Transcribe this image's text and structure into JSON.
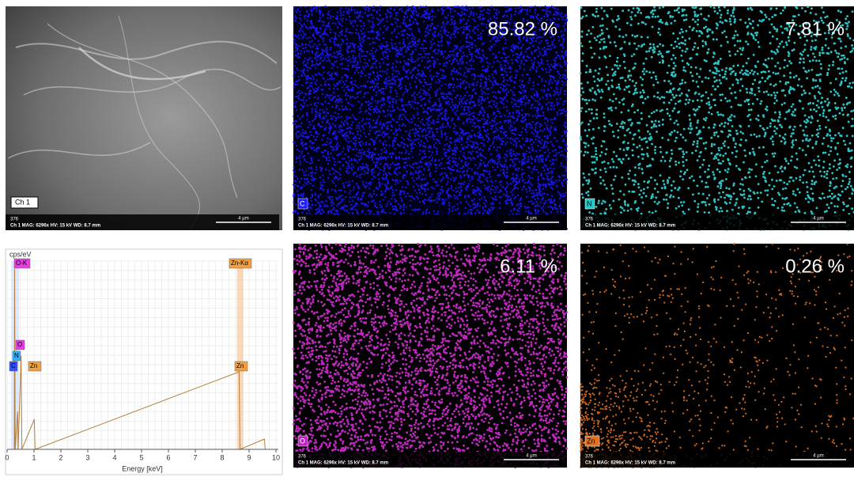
{
  "panels": [
    {
      "tag": "Ch 1",
      "id": "376",
      "info": "Ch 1   MAG: 6296x   HV: 15 kV   WD: 8.7 mm",
      "scale": "4 µm"
    },
    {
      "tag": "C",
      "percent": "85.82 %",
      "id": "376",
      "info": "Ch 1   MAG: 6296x   HV: 15 kV   WD: 8.7 mm",
      "scale": "4 µm"
    },
    {
      "tag": "N",
      "percent": "7.81 %",
      "id": "376",
      "info": "Ch 1   MAG: 6296x   HV: 15 kV   WD: 8.7 mm",
      "scale": "4 µm"
    },
    {
      "tag": "O",
      "percent": "6.11 %",
      "id": "376",
      "info": "Ch 1   MAG: 6296x   HV: 15 kV   WD: 8.7 mm",
      "scale": "4 µm"
    },
    {
      "tag": "Zn",
      "percent": "0.26 %",
      "id": "376",
      "info": "Ch 1   MAG: 6296x   HV: 15 kV   WD: 8.7 mm",
      "scale": "4 µm"
    }
  ],
  "spectrum": {
    "y_label": "cps/eV",
    "x_label": "Energy [keV]",
    "xticks": [
      0,
      1,
      2,
      3,
      4,
      5,
      6,
      7,
      8,
      9,
      10
    ],
    "peak_labels": [
      "O-K",
      "O",
      "N",
      "C",
      "Zn",
      "Zn-Kα",
      "Zn"
    ]
  }
}
